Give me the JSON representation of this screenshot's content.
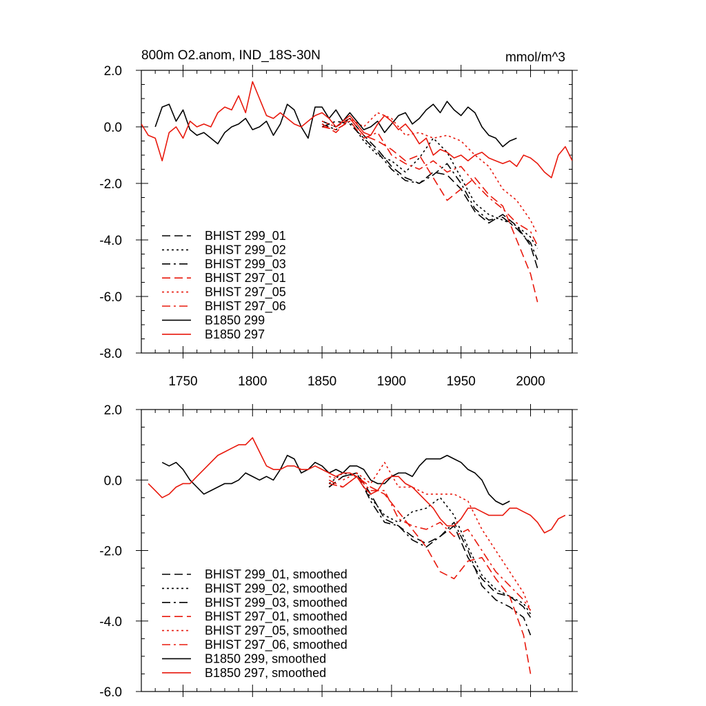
{
  "colors": {
    "black": "#000000",
    "red": "#e8180c"
  },
  "chart_data": [
    {
      "type": "line",
      "title": "800m O2.anom, IND_18S-30N",
      "units": "mmol/m^3",
      "xlim": [
        1720,
        2030
      ],
      "ylim": [
        -8,
        2
      ],
      "xticks": [
        1750,
        1800,
        1850,
        1900,
        1950,
        2000
      ],
      "yticks": [
        2,
        0,
        -2,
        -4,
        -6,
        -8
      ],
      "ytick_labels": [
        "2.0",
        "0.0",
        "-2.0",
        "-4.0",
        "-6.0",
        "-8.0"
      ],
      "xtick_labels": [
        "1750",
        "1800",
        "1850",
        "1900",
        "1950",
        "2000"
      ],
      "legend_position": "bottom-left",
      "series": [
        {
          "name": "BHIST 299_01",
          "color": "black",
          "dash": "dashed",
          "x": [
            1850,
            1860,
            1870,
            1880,
            1890,
            1900,
            1910,
            1920,
            1930,
            1940,
            1950,
            1960,
            1970,
            1980,
            1990,
            2000,
            2005
          ],
          "y": [
            0.2,
            0.0,
            0.3,
            -0.3,
            -0.8,
            -1.4,
            -1.8,
            -2.0,
            -1.6,
            -1.7,
            -2.2,
            -3.0,
            -3.4,
            -3.1,
            -3.5,
            -4.2,
            -5.0
          ]
        },
        {
          "name": "BHIST 299_02",
          "color": "black",
          "dash": "dotted",
          "x": [
            1850,
            1860,
            1870,
            1880,
            1890,
            1900,
            1910,
            1920,
            1930,
            1940,
            1950,
            1960,
            1970,
            1980,
            1990,
            2000,
            2005
          ],
          "y": [
            0.1,
            -0.1,
            0.2,
            -0.5,
            -1.0,
            -1.2,
            -1.6,
            -1.1,
            -0.4,
            -0.9,
            -1.8,
            -2.7,
            -3.1,
            -3.3,
            -3.5,
            -3.9,
            -4.3
          ]
        },
        {
          "name": "BHIST 299_03",
          "color": "black",
          "dash": "dashdot",
          "x": [
            1850,
            1860,
            1870,
            1880,
            1890,
            1900,
            1910,
            1920,
            1930,
            1940,
            1950,
            1960,
            1970,
            1980,
            1990,
            2000,
            2005
          ],
          "y": [
            0.0,
            0.2,
            0.1,
            -0.4,
            -0.9,
            -1.5,
            -1.9,
            -2.0,
            -1.7,
            -1.3,
            -2.0,
            -2.9,
            -3.3,
            -3.2,
            -3.6,
            -4.1,
            -4.7
          ]
        },
        {
          "name": "BHIST 297_01",
          "color": "red",
          "dash": "dashed",
          "x": [
            1850,
            1860,
            1870,
            1880,
            1890,
            1900,
            1910,
            1920,
            1930,
            1940,
            1950,
            1960,
            1970,
            1980,
            1990,
            2000,
            2005
          ],
          "y": [
            0.1,
            -0.2,
            0.3,
            -0.3,
            -0.5,
            -0.8,
            -1.2,
            -1.0,
            -1.8,
            -2.6,
            -2.2,
            -1.8,
            -2.4,
            -2.8,
            -4.0,
            -5.2,
            -6.2
          ]
        },
        {
          "name": "BHIST 297_05",
          "color": "red",
          "dash": "dotted",
          "x": [
            1850,
            1860,
            1870,
            1880,
            1890,
            1900,
            1910,
            1920,
            1930,
            1940,
            1950,
            1960,
            1970,
            1980,
            1990,
            2000,
            2005
          ],
          "y": [
            0.2,
            0.0,
            0.3,
            0.0,
            0.5,
            0.3,
            -0.3,
            -0.2,
            -0.4,
            -0.3,
            -0.5,
            -1.0,
            -1.4,
            -2.2,
            -2.6,
            -3.3,
            -3.8
          ]
        },
        {
          "name": "BHIST 297_06",
          "color": "red",
          "dash": "dashdot",
          "x": [
            1850,
            1860,
            1870,
            1880,
            1890,
            1900,
            1910,
            1920,
            1930,
            1940,
            1950,
            1960,
            1970,
            1980,
            1990,
            2000,
            2005
          ],
          "y": [
            0.0,
            -0.1,
            0.2,
            -0.4,
            -0.2,
            -1.0,
            -1.3,
            -1.5,
            -1.2,
            -1.6,
            -1.4,
            -2.0,
            -2.5,
            -2.9,
            -3.4,
            -3.7,
            -4.2
          ]
        },
        {
          "name": "B1850 299",
          "color": "black",
          "dash": "solid",
          "x": [
            1730,
            1735,
            1740,
            1745,
            1750,
            1755,
            1760,
            1765,
            1770,
            1775,
            1780,
            1785,
            1790,
            1795,
            1800,
            1805,
            1810,
            1815,
            1820,
            1825,
            1830,
            1835,
            1840,
            1845,
            1850,
            1855,
            1860,
            1865,
            1870,
            1875,
            1880,
            1885,
            1890,
            1895,
            1900,
            1905,
            1910,
            1915,
            1920,
            1925,
            1930,
            1935,
            1940,
            1945,
            1950,
            1955,
            1960,
            1965,
            1970,
            1975,
            1980,
            1985,
            1990
          ],
          "y": [
            0.0,
            0.7,
            0.8,
            0.2,
            0.6,
            -0.1,
            -0.3,
            -0.2,
            -0.4,
            -0.6,
            -0.2,
            0.0,
            0.1,
            0.3,
            -0.1,
            0.0,
            0.2,
            -0.3,
            0.1,
            0.8,
            0.6,
            0.0,
            -0.4,
            0.7,
            0.7,
            0.3,
            0.6,
            0.2,
            0.5,
            0.2,
            -0.1,
            0.0,
            0.2,
            -0.2,
            0.1,
            0.4,
            0.5,
            0.1,
            0.3,
            0.6,
            0.8,
            0.5,
            0.9,
            0.6,
            0.4,
            0.7,
            0.5,
            0.0,
            -0.3,
            -0.4,
            -0.7,
            -0.5,
            -0.4
          ]
        },
        {
          "name": "B1850 297",
          "color": "red",
          "dash": "solid",
          "x": [
            1720,
            1725,
            1730,
            1735,
            1740,
            1745,
            1750,
            1755,
            1760,
            1765,
            1770,
            1775,
            1780,
            1785,
            1790,
            1795,
            1800,
            1805,
            1810,
            1815,
            1820,
            1825,
            1830,
            1835,
            1840,
            1845,
            1850,
            1855,
            1860,
            1865,
            1870,
            1875,
            1880,
            1885,
            1890,
            1895,
            1900,
            1905,
            1910,
            1915,
            1920,
            1925,
            1930,
            1935,
            1940,
            1945,
            1950,
            1955,
            1960,
            1965,
            1970,
            1975,
            1980,
            1985,
            1990,
            1995,
            2000,
            2005,
            2010,
            2015,
            2020,
            2025,
            2030
          ],
          "y": [
            0.1,
            -0.3,
            -0.4,
            -1.2,
            -0.2,
            0.0,
            -0.4,
            0.2,
            0.0,
            0.1,
            0.0,
            0.5,
            0.7,
            0.6,
            1.1,
            0.5,
            1.6,
            1.0,
            0.4,
            0.3,
            0.5,
            0.3,
            0.1,
            0.0,
            0.2,
            0.4,
            0.5,
            0.3,
            0.0,
            0.2,
            0.4,
            0.1,
            -0.2,
            -0.3,
            0.1,
            0.4,
            0.2,
            -0.1,
            0.1,
            -0.2,
            -0.6,
            -0.4,
            -1.0,
            -0.8,
            -0.9,
            -1.1,
            -1.0,
            -1.2,
            -1.0,
            -0.9,
            -1.1,
            -1.2,
            -1.3,
            -1.2,
            -1.4,
            -1.0,
            -1.1,
            -1.3,
            -1.6,
            -1.8,
            -1.0,
            -0.7,
            -1.2
          ]
        }
      ]
    },
    {
      "type": "line",
      "title": "",
      "xlim": [
        1720,
        2030
      ],
      "ylim": [
        -6,
        2
      ],
      "yticks": [
        2,
        0,
        -2,
        -4,
        -6
      ],
      "ytick_labels": [
        "2.0",
        "0.0",
        "-2.0",
        "-4.0",
        "-6.0"
      ],
      "legend_position": "bottom-left",
      "series": [
        {
          "name": "BHIST 299_01, smoothed",
          "color": "black",
          "dash": "dashed",
          "x": [
            1855,
            1865,
            1875,
            1885,
            1895,
            1905,
            1915,
            1925,
            1935,
            1945,
            1955,
            1965,
            1975,
            1985,
            1995,
            2000
          ],
          "y": [
            -0.2,
            0.1,
            0.2,
            -0.4,
            -1.1,
            -1.3,
            -1.6,
            -1.8,
            -1.6,
            -1.3,
            -2.2,
            -2.8,
            -3.2,
            -3.3,
            -3.6,
            -3.9
          ]
        },
        {
          "name": "BHIST 299_02, smoothed",
          "color": "black",
          "dash": "dotted",
          "x": [
            1855,
            1865,
            1875,
            1885,
            1895,
            1905,
            1915,
            1925,
            1935,
            1945,
            1955,
            1965,
            1975,
            1985,
            1995,
            2000
          ],
          "y": [
            -0.1,
            0.2,
            0.1,
            -0.5,
            -1.0,
            -1.2,
            -0.9,
            -0.8,
            -0.5,
            -1.0,
            -1.9,
            -2.7,
            -3.1,
            -3.3,
            -3.5,
            -3.8
          ]
        },
        {
          "name": "BHIST 299_03, smoothed",
          "color": "black",
          "dash": "dashdot",
          "x": [
            1855,
            1865,
            1875,
            1885,
            1895,
            1905,
            1915,
            1925,
            1935,
            1945,
            1955,
            1965,
            1975,
            1985,
            1995,
            2000
          ],
          "y": [
            -0.2,
            0.1,
            0.2,
            -0.6,
            -1.2,
            -1.3,
            -1.7,
            -1.9,
            -1.6,
            -1.2,
            -2.0,
            -3.0,
            -3.4,
            -3.6,
            -3.9,
            -4.4
          ]
        },
        {
          "name": "BHIST 297_01, smoothed",
          "color": "red",
          "dash": "dashed",
          "x": [
            1855,
            1865,
            1875,
            1885,
            1895,
            1905,
            1915,
            1925,
            1935,
            1945,
            1955,
            1965,
            1975,
            1985,
            1995,
            2000
          ],
          "y": [
            0.0,
            -0.2,
            0.1,
            -0.2,
            -0.4,
            -0.9,
            -1.4,
            -1.9,
            -2.6,
            -2.8,
            -2.3,
            -2.2,
            -2.8,
            -3.3,
            -4.4,
            -5.5
          ]
        },
        {
          "name": "BHIST 297_05, smoothed",
          "color": "red",
          "dash": "dotted",
          "x": [
            1855,
            1865,
            1875,
            1885,
            1895,
            1905,
            1915,
            1925,
            1935,
            1945,
            1955,
            1965,
            1975,
            1985,
            1995,
            2000
          ],
          "y": [
            0.1,
            0.0,
            0.2,
            -0.1,
            0.5,
            -0.2,
            -0.2,
            -0.4,
            -0.4,
            -0.4,
            -0.6,
            -1.4,
            -2.0,
            -2.6,
            -3.2,
            -3.7
          ]
        },
        {
          "name": "BHIST 297_06, smoothed",
          "color": "red",
          "dash": "dashdot",
          "x": [
            1855,
            1865,
            1875,
            1885,
            1895,
            1905,
            1915,
            1925,
            1935,
            1945,
            1955,
            1965,
            1975,
            1985,
            1995,
            2000
          ],
          "y": [
            -0.1,
            -0.2,
            0.1,
            -0.3,
            -0.3,
            -1.1,
            -1.3,
            -1.4,
            -1.2,
            -1.6,
            -1.4,
            -2.0,
            -2.6,
            -3.0,
            -3.4,
            -3.7
          ]
        },
        {
          "name": "B1850 299, smoothed",
          "color": "black",
          "dash": "solid",
          "x": [
            1735,
            1740,
            1745,
            1750,
            1755,
            1760,
            1765,
            1770,
            1775,
            1780,
            1785,
            1790,
            1795,
            1800,
            1805,
            1810,
            1815,
            1820,
            1825,
            1830,
            1835,
            1840,
            1845,
            1850,
            1855,
            1860,
            1865,
            1870,
            1875,
            1880,
            1885,
            1890,
            1895,
            1900,
            1905,
            1910,
            1915,
            1920,
            1925,
            1930,
            1935,
            1940,
            1945,
            1950,
            1955,
            1960,
            1965,
            1970,
            1975,
            1980,
            1985
          ],
          "y": [
            0.5,
            0.4,
            0.5,
            0.3,
            0.0,
            -0.2,
            -0.4,
            -0.3,
            -0.2,
            -0.1,
            -0.1,
            0.0,
            0.2,
            0.1,
            0.0,
            0.1,
            0.0,
            0.3,
            0.7,
            0.6,
            0.2,
            0.3,
            0.5,
            0.4,
            0.2,
            0.3,
            0.2,
            0.4,
            0.4,
            0.3,
            0.0,
            -0.1,
            -0.1,
            0.1,
            0.2,
            0.2,
            0.1,
            0.4,
            0.6,
            0.6,
            0.6,
            0.7,
            0.6,
            0.5,
            0.3,
            0.2,
            0.0,
            -0.4,
            -0.6,
            -0.7,
            -0.6
          ]
        },
        {
          "name": "B1850 297, smoothed",
          "color": "red",
          "dash": "solid",
          "x": [
            1725,
            1730,
            1735,
            1740,
            1745,
            1750,
            1755,
            1760,
            1765,
            1770,
            1775,
            1780,
            1785,
            1790,
            1795,
            1800,
            1805,
            1810,
            1815,
            1820,
            1825,
            1830,
            1835,
            1840,
            1845,
            1850,
            1855,
            1860,
            1865,
            1870,
            1875,
            1880,
            1885,
            1890,
            1895,
            1900,
            1905,
            1910,
            1915,
            1920,
            1925,
            1930,
            1935,
            1940,
            1945,
            1950,
            1955,
            1960,
            1965,
            1970,
            1975,
            1980,
            1985,
            1990,
            1995,
            2000,
            2005,
            2010,
            2015,
            2020,
            2025
          ],
          "y": [
            -0.1,
            -0.3,
            -0.5,
            -0.4,
            -0.2,
            -0.1,
            -0.1,
            0.1,
            0.3,
            0.5,
            0.7,
            0.8,
            0.9,
            1.0,
            1.0,
            1.2,
            0.8,
            0.4,
            0.3,
            0.3,
            0.4,
            0.4,
            0.3,
            0.3,
            0.4,
            0.3,
            0.2,
            0.1,
            0.2,
            0.2,
            0.1,
            -0.2,
            -0.4,
            -0.3,
            0.0,
            0.1,
            0.1,
            -0.1,
            -0.2,
            -0.4,
            -0.6,
            -0.8,
            -1.1,
            -1.3,
            -1.3,
            -1.1,
            -0.8,
            -0.8,
            -0.9,
            -1.0,
            -1.0,
            -1.0,
            -0.8,
            -0.8,
            -0.9,
            -1.0,
            -1.2,
            -1.5,
            -1.4,
            -1.1,
            -1.0
          ]
        }
      ]
    }
  ]
}
